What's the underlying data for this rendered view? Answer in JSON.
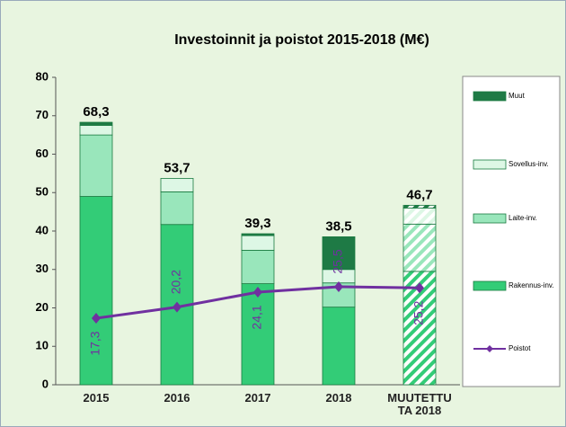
{
  "chart_data": {
    "type": "stacked_bar_line",
    "title": "Investoinnit ja poistot 2015-2018 (M€)",
    "categories": [
      "2015",
      "2016",
      "2017",
      "2018",
      "MUUTETTU TA 2018"
    ],
    "hatched": [
      false,
      false,
      false,
      false,
      true
    ],
    "series": [
      {
        "name": "Rakennus-inv.",
        "color": "#33cc77",
        "values": [
          49,
          41.7,
          26.3,
          20.2,
          29.5
        ]
      },
      {
        "name": "Laite-inv.",
        "color": "#99e6bb",
        "values": [
          16,
          8.5,
          8.7,
          6.3,
          12.3
        ]
      },
      {
        "name": "Sovellus-inv.",
        "color": "#ddf7e5",
        "values": [
          2.5,
          3.5,
          3.8,
          3.5,
          4.2
        ]
      },
      {
        "name": "Muut",
        "color": "#1e7a45",
        "values": [
          0.8,
          0,
          0.5,
          8.5,
          0.7
        ]
      }
    ],
    "totals": [
      68.3,
      53.7,
      39.3,
      38.5,
      46.7
    ],
    "total_labels": [
      "68,3",
      "53,7",
      "39,3",
      "38,5",
      "46,7"
    ],
    "line": {
      "name": "Poistot",
      "color": "#7030a0",
      "values": [
        17.3,
        20.2,
        24.1,
        25.5,
        25.2
      ],
      "value_labels": [
        "17,3",
        "20,2",
        "24,1",
        "25,5",
        "25,2"
      ]
    },
    "ylim": [
      0,
      80
    ],
    "yticks": [
      0,
      10,
      20,
      30,
      40,
      50,
      60,
      70,
      80
    ]
  }
}
